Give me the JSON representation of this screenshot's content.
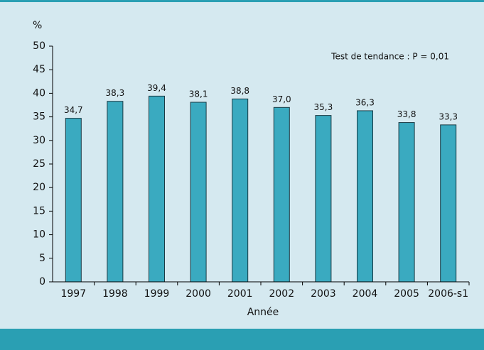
{
  "chart_data": {
    "type": "bar",
    "y_axis_label": "%",
    "x_axis_label": "Année",
    "annotation": "Test de tendance : P = 0,01",
    "categories": [
      "1997",
      "1998",
      "1999",
      "2000",
      "2001",
      "2002",
      "2003",
      "2004",
      "2005",
      "2006-s1"
    ],
    "values": [
      34.7,
      38.3,
      39.4,
      38.1,
      38.8,
      37.0,
      35.3,
      36.3,
      33.8,
      33.3
    ],
    "value_labels": [
      "34,7",
      "38,3",
      "39,4",
      "38,1",
      "38,8",
      "37,0",
      "35,3",
      "36,3",
      "33,8",
      "33,3"
    ],
    "color": "#3aaac0",
    "ylim": [
      0,
      50
    ],
    "yticks": [
      0,
      5,
      10,
      15,
      20,
      25,
      30,
      35,
      40,
      45,
      50
    ],
    "grid": false
  }
}
